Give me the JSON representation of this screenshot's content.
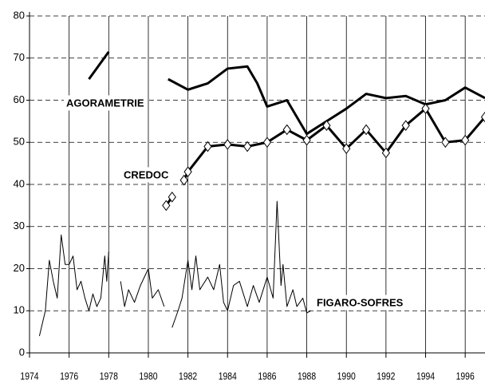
{
  "chart_data": {
    "type": "line",
    "xlim": [
      1974,
      1997
    ],
    "ylim": [
      0,
      80
    ],
    "xticks": [
      1974,
      1976,
      1978,
      1980,
      1982,
      1984,
      1986,
      1988,
      1990,
      1992,
      1994,
      1996
    ],
    "yticks": [
      0,
      10,
      20,
      30,
      40,
      50,
      60,
      70,
      80
    ],
    "grid": true,
    "series": [
      {
        "name": "AGORAMETRIE",
        "color": "#000000",
        "marker": "none",
        "x": [
          1977,
          1978,
          null,
          1981,
          1982,
          1983,
          1984,
          1985,
          1985.5,
          1986,
          1987,
          1988,
          1989,
          1990,
          1991,
          1992,
          1993,
          1994,
          1995,
          1996,
          1997
        ],
        "values": [
          65,
          71.5,
          null,
          65,
          62.5,
          64,
          67.5,
          68,
          64,
          58.5,
          60,
          52,
          55,
          58,
          61.5,
          60.5,
          61,
          59,
          60,
          63,
          60.5
        ]
      },
      {
        "name": "CREDOC",
        "color": "#000000",
        "marker": "diamond",
        "x": [
          1980.9,
          1981.2,
          null,
          1981.8,
          1982,
          1983,
          1984,
          1985,
          1986,
          1987,
          1988,
          1989,
          1990,
          1991,
          1992,
          1993,
          1994,
          1995,
          1996,
          1997
        ],
        "values": [
          35,
          37,
          null,
          41,
          43,
          49,
          49.5,
          49,
          50,
          53,
          50.5,
          54,
          48.5,
          53,
          47.5,
          54,
          58,
          50,
          50.5,
          56
        ]
      },
      {
        "name": "FIGARO-SOFRES",
        "color": "#000000",
        "marker": "none",
        "x": [
          1974.5,
          1974.8,
          1975,
          1975.2,
          1975.4,
          1975.6,
          1975.8,
          1976,
          1976.2,
          1976.4,
          1976.6,
          1976.8,
          1977,
          1977.2,
          1977.4,
          1977.6,
          1977.8,
          1977.9,
          1978,
          null,
          1978.6,
          1978.8,
          1979,
          1979.3,
          1979.6,
          1980,
          1980.2,
          1980.5,
          1980.8,
          null,
          1981.2,
          1981.5,
          1981.7,
          1982,
          1982.2,
          1982.4,
          1982.6,
          1983,
          1983.3,
          1983.6,
          1983.8,
          1984,
          1984.3,
          1984.6,
          1985,
          1985.3,
          1985.6,
          1986,
          1986.3,
          1986.5,
          1986.7,
          1986.8,
          1987,
          1987.3,
          1987.5,
          1987.8,
          1988,
          1988.2
        ],
        "values": [
          4,
          10,
          22,
          17,
          13,
          28,
          21,
          21,
          23,
          15,
          17,
          13,
          10,
          14,
          11,
          13,
          23,
          17,
          24,
          null,
          17,
          11,
          15,
          12,
          16,
          20,
          13,
          15,
          11,
          null,
          6,
          10,
          13,
          22,
          15,
          23,
          15,
          18,
          15,
          21,
          12,
          10,
          16,
          17,
          11,
          16,
          12,
          18,
          13,
          36,
          16,
          21,
          11,
          15,
          11,
          13,
          9.5,
          10
        ]
      }
    ]
  }
}
